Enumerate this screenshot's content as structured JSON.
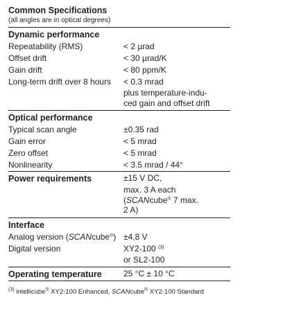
{
  "title": "Common Specifications",
  "subtitle": "(all angles are in optical degrees)",
  "sections": {
    "dynamic": {
      "title": "Dynamic performance",
      "rows": [
        {
          "param": "Repeatability (RMS)",
          "value": [
            "< 2 µrad"
          ]
        },
        {
          "param": "Offset drift",
          "value": [
            "< 30 µrad/K"
          ]
        },
        {
          "param": "Gain drift",
          "value": [
            "< 80 ppm/K"
          ]
        },
        {
          "param": "Long-term drift over 8 hours",
          "value": [
            "< 0.3 mrad",
            "plus temperature-indu-",
            "ced gain and offset drift"
          ]
        }
      ]
    },
    "optical": {
      "title": "Optical performance",
      "rows": [
        {
          "param": "Typical scan angle",
          "value": [
            "±0.35 rad"
          ]
        },
        {
          "param": "Gain error",
          "value": [
            "< 5 mrad"
          ]
        },
        {
          "param": "Zero offset",
          "value": [
            "< 5 mrad"
          ]
        },
        {
          "param": "Nonlinearity",
          "value": [
            "< 3.5 mrad / 44°"
          ]
        }
      ]
    },
    "power": {
      "title": "Power requirements",
      "value": [
        "±15 V DC,",
        "max. 3 A each"
      ],
      "value_paren_open": "(",
      "value_scan": "SCAN",
      "value_cube": "cube",
      "value_reg": "®",
      "value_tail": " 7 max.",
      "value_last": "2 A)"
    },
    "interface": {
      "title": "Interface",
      "analog_label": "Analog version (",
      "analog_scan": "SCAN",
      "analog_cube": "cube",
      "analog_reg": "®",
      "analog_close": ")",
      "analog_value": "±4,8 V",
      "digital_label": "Digital version",
      "digital_value": "XY2-100",
      "digital_sup": "(3)",
      "digital_value2": "or SL2-100"
    },
    "temperature": {
      "title": "Operating temperature",
      "value": "25 °C ± 10 °C"
    }
  },
  "footnote": {
    "mark": "(3)",
    "text1": " intelli",
    "text1b": "cube",
    "reg1": "®",
    "text2": " XY2-100 Enhanced, ",
    "scan": "SCAN",
    "cube": "cube",
    "reg2": "®",
    "text3": " XY2-100 Standard"
  }
}
